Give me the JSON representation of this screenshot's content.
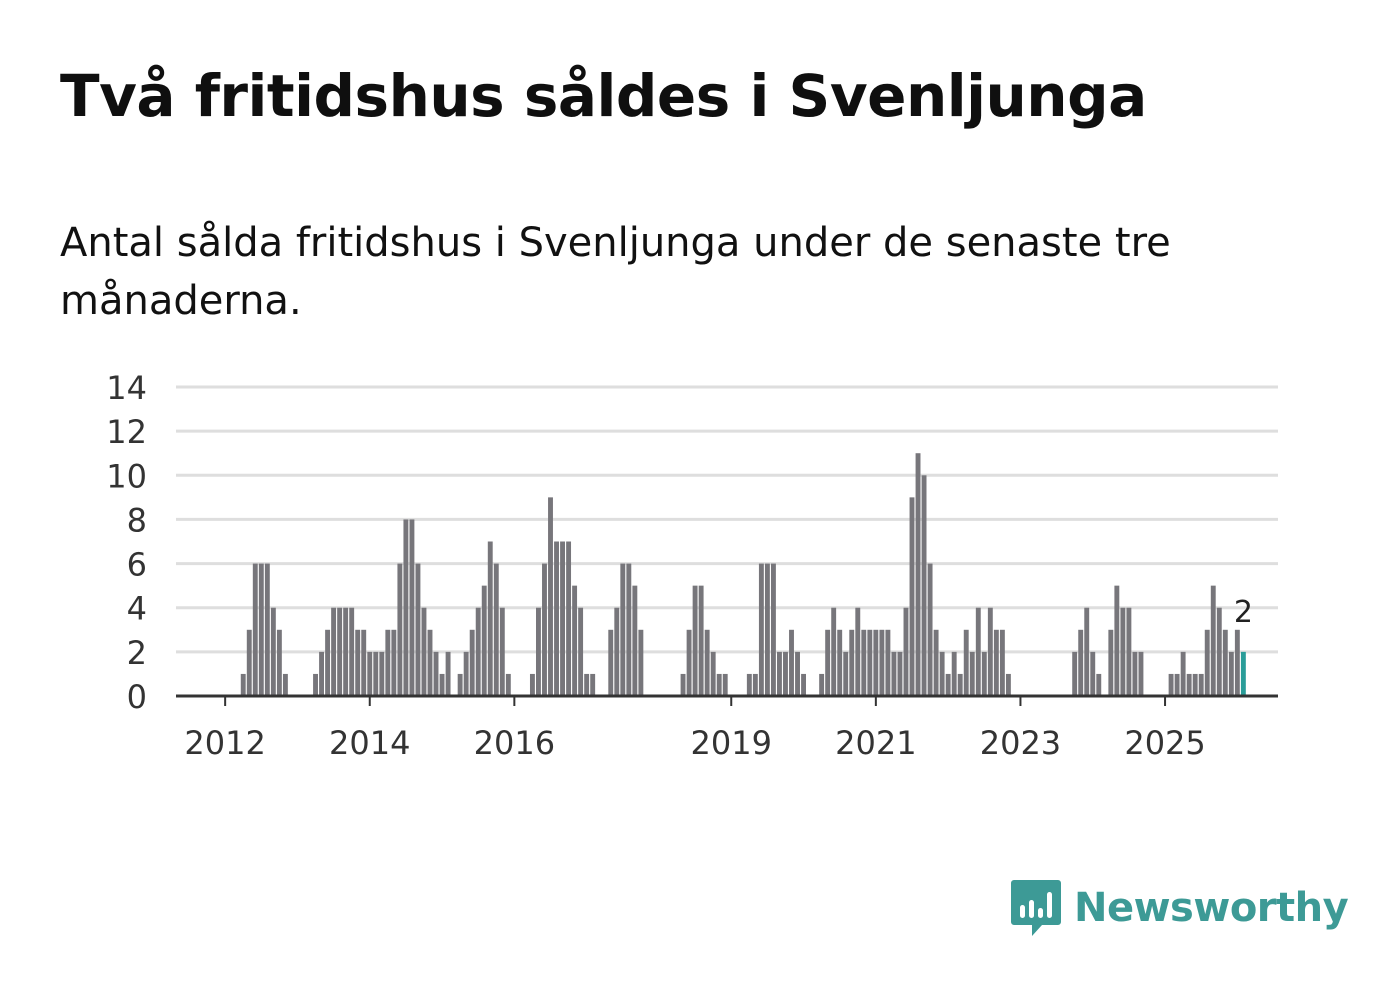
{
  "title": "Två fritidshus såldes i Svenljunga",
  "subtitle": "Antal sålda fritidshus i Svenljunga under de senaste tre månaderna.",
  "brand": {
    "name": "Newsworthy",
    "color": "#3d9a96",
    "icon": "newsworthy-logo-icon"
  },
  "chart_data": {
    "type": "bar",
    "title": "Antal sålda fritidshus i Svenljunga under de senaste tre månaderna.",
    "xlabel": "",
    "ylabel": "",
    "ylim": [
      0,
      14
    ],
    "yticks": [
      "0",
      "2",
      "4",
      "6",
      "8",
      "10",
      "12",
      "14"
    ],
    "grid": true,
    "legend": "none",
    "start": "2011-05",
    "xticks": [
      {
        "label": "2012",
        "index": 8
      },
      {
        "label": "2014",
        "index": 32
      },
      {
        "label": "2016",
        "index": 56
      },
      {
        "label": "2019",
        "index": 92
      },
      {
        "label": "2021",
        "index": 116
      },
      {
        "label": "2023",
        "index": 140
      },
      {
        "label": "2025",
        "index": 164
      }
    ],
    "bar_color": "#77767b",
    "highlight_color": "#2a9d99",
    "highlight_label": "2",
    "values": [
      0,
      0,
      0,
      0,
      0,
      0,
      0,
      0,
      0,
      0,
      0,
      1,
      3,
      6,
      6,
      6,
      4,
      3,
      1,
      0,
      0,
      0,
      0,
      1,
      2,
      3,
      4,
      4,
      4,
      4,
      3,
      3,
      2,
      2,
      2,
      3,
      3,
      6,
      8,
      8,
      6,
      4,
      3,
      2,
      1,
      2,
      0,
      1,
      2,
      3,
      4,
      5,
      7,
      6,
      4,
      1,
      0,
      0,
      0,
      1,
      4,
      6,
      9,
      7,
      7,
      7,
      5,
      4,
      1,
      1,
      0,
      0,
      3,
      4,
      6,
      6,
      5,
      3,
      0,
      0,
      0,
      0,
      0,
      0,
      1,
      3,
      5,
      5,
      3,
      2,
      1,
      1,
      0,
      0,
      0,
      1,
      1,
      6,
      6,
      6,
      2,
      2,
      3,
      2,
      1,
      0,
      0,
      1,
      3,
      4,
      3,
      2,
      3,
      4,
      3,
      3,
      3,
      3,
      3,
      2,
      2,
      4,
      9,
      11,
      10,
      6,
      3,
      2,
      1,
      2,
      1,
      3,
      2,
      4,
      2,
      4,
      3,
      3,
      1,
      0,
      0,
      0,
      0,
      0,
      0,
      0,
      0,
      0,
      0,
      2,
      3,
      4,
      2,
      1,
      0,
      3,
      5,
      4,
      4,
      2,
      2,
      0,
      0,
      0,
      0,
      1,
      1,
      2,
      1,
      1,
      1,
      3,
      5,
      4,
      3,
      2,
      3,
      2
    ]
  }
}
